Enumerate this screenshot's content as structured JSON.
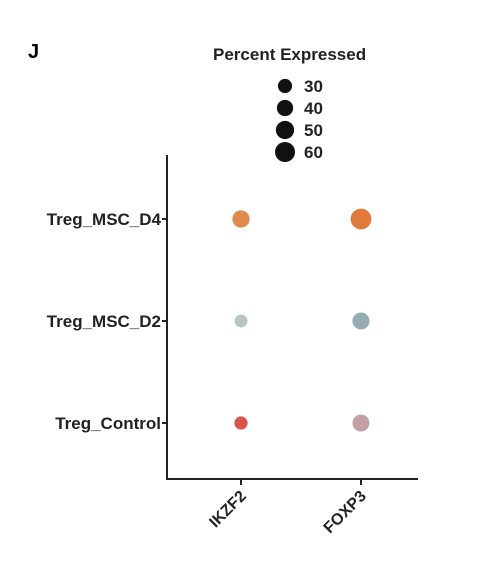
{
  "panel_label": "J",
  "chart_data": {
    "type": "scatter",
    "subtype": "dot-plot",
    "title": "",
    "xlabel": "",
    "ylabel": "",
    "categories_x": [
      "IKZF2",
      "FOXP3"
    ],
    "categories_y": [
      "Treg_MSC_D4",
      "Treg_MSC_D2",
      "Treg_Control"
    ],
    "size_legend": {
      "title": "Percent Expressed",
      "values": [
        30,
        40,
        50,
        60
      ],
      "labels": [
        "30",
        "40",
        "50",
        "60"
      ]
    },
    "points": [
      {
        "y": "Treg_MSC_D4",
        "x": "IKZF2",
        "percent_expressed": 45,
        "color": "#e08a4c"
      },
      {
        "y": "Treg_MSC_D4",
        "x": "FOXP3",
        "percent_expressed": 65,
        "color": "#e07b3c"
      },
      {
        "y": "Treg_MSC_D2",
        "x": "IKZF2",
        "percent_expressed": 25,
        "color": "#b9c4c4"
      },
      {
        "y": "Treg_MSC_D2",
        "x": "FOXP3",
        "percent_expressed": 44,
        "color": "#93adb2"
      },
      {
        "y": "Treg_Control",
        "x": "IKZF2",
        "percent_expressed": 26,
        "color": "#d9534a"
      },
      {
        "y": "Treg_Control",
        "x": "FOXP3",
        "percent_expressed": 43,
        "color": "#c3a0a3"
      }
    ],
    "grid": false,
    "legend_position": "top"
  }
}
